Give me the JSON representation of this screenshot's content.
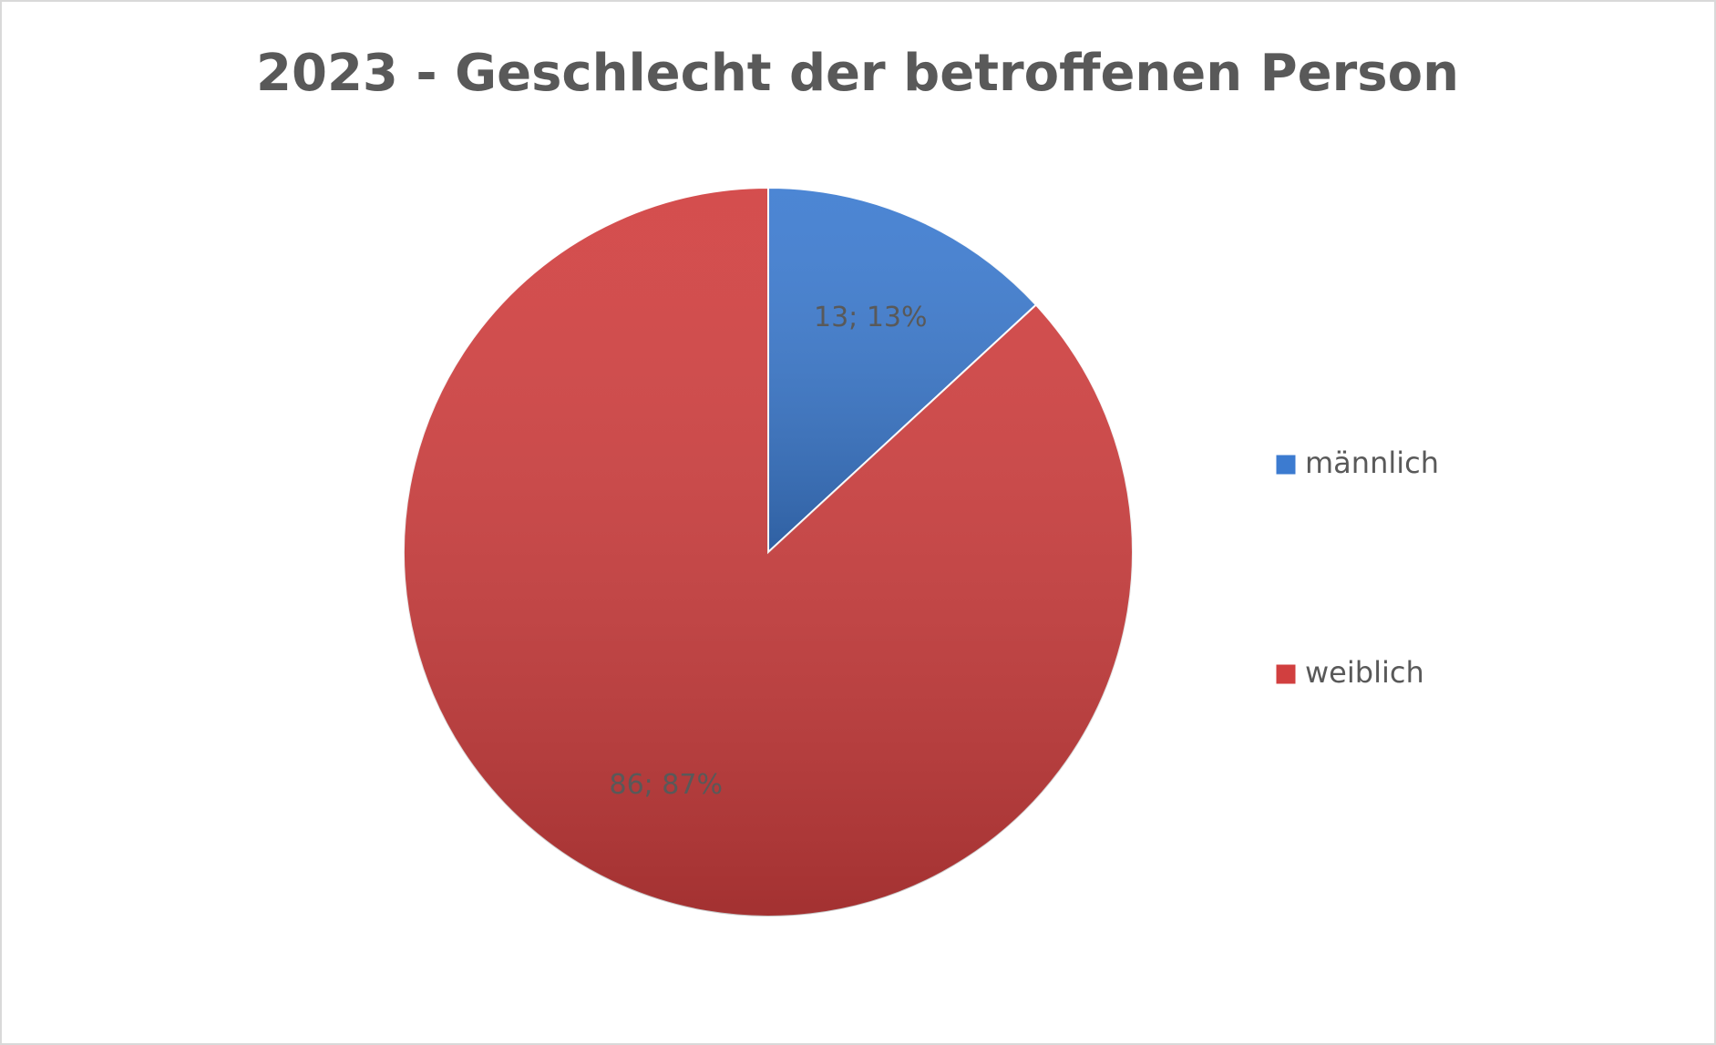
{
  "chart_data": {
    "type": "pie",
    "title": "2023 - Geschlecht der betroffenen Person",
    "categories": [
      "männlich",
      "weiblich"
    ],
    "values": [
      13,
      86
    ],
    "value_labels": [
      "13; 13%",
      "86; 87%"
    ],
    "colors": [
      "#3c7bd0",
      "#d13f3f"
    ],
    "legend": "right"
  }
}
